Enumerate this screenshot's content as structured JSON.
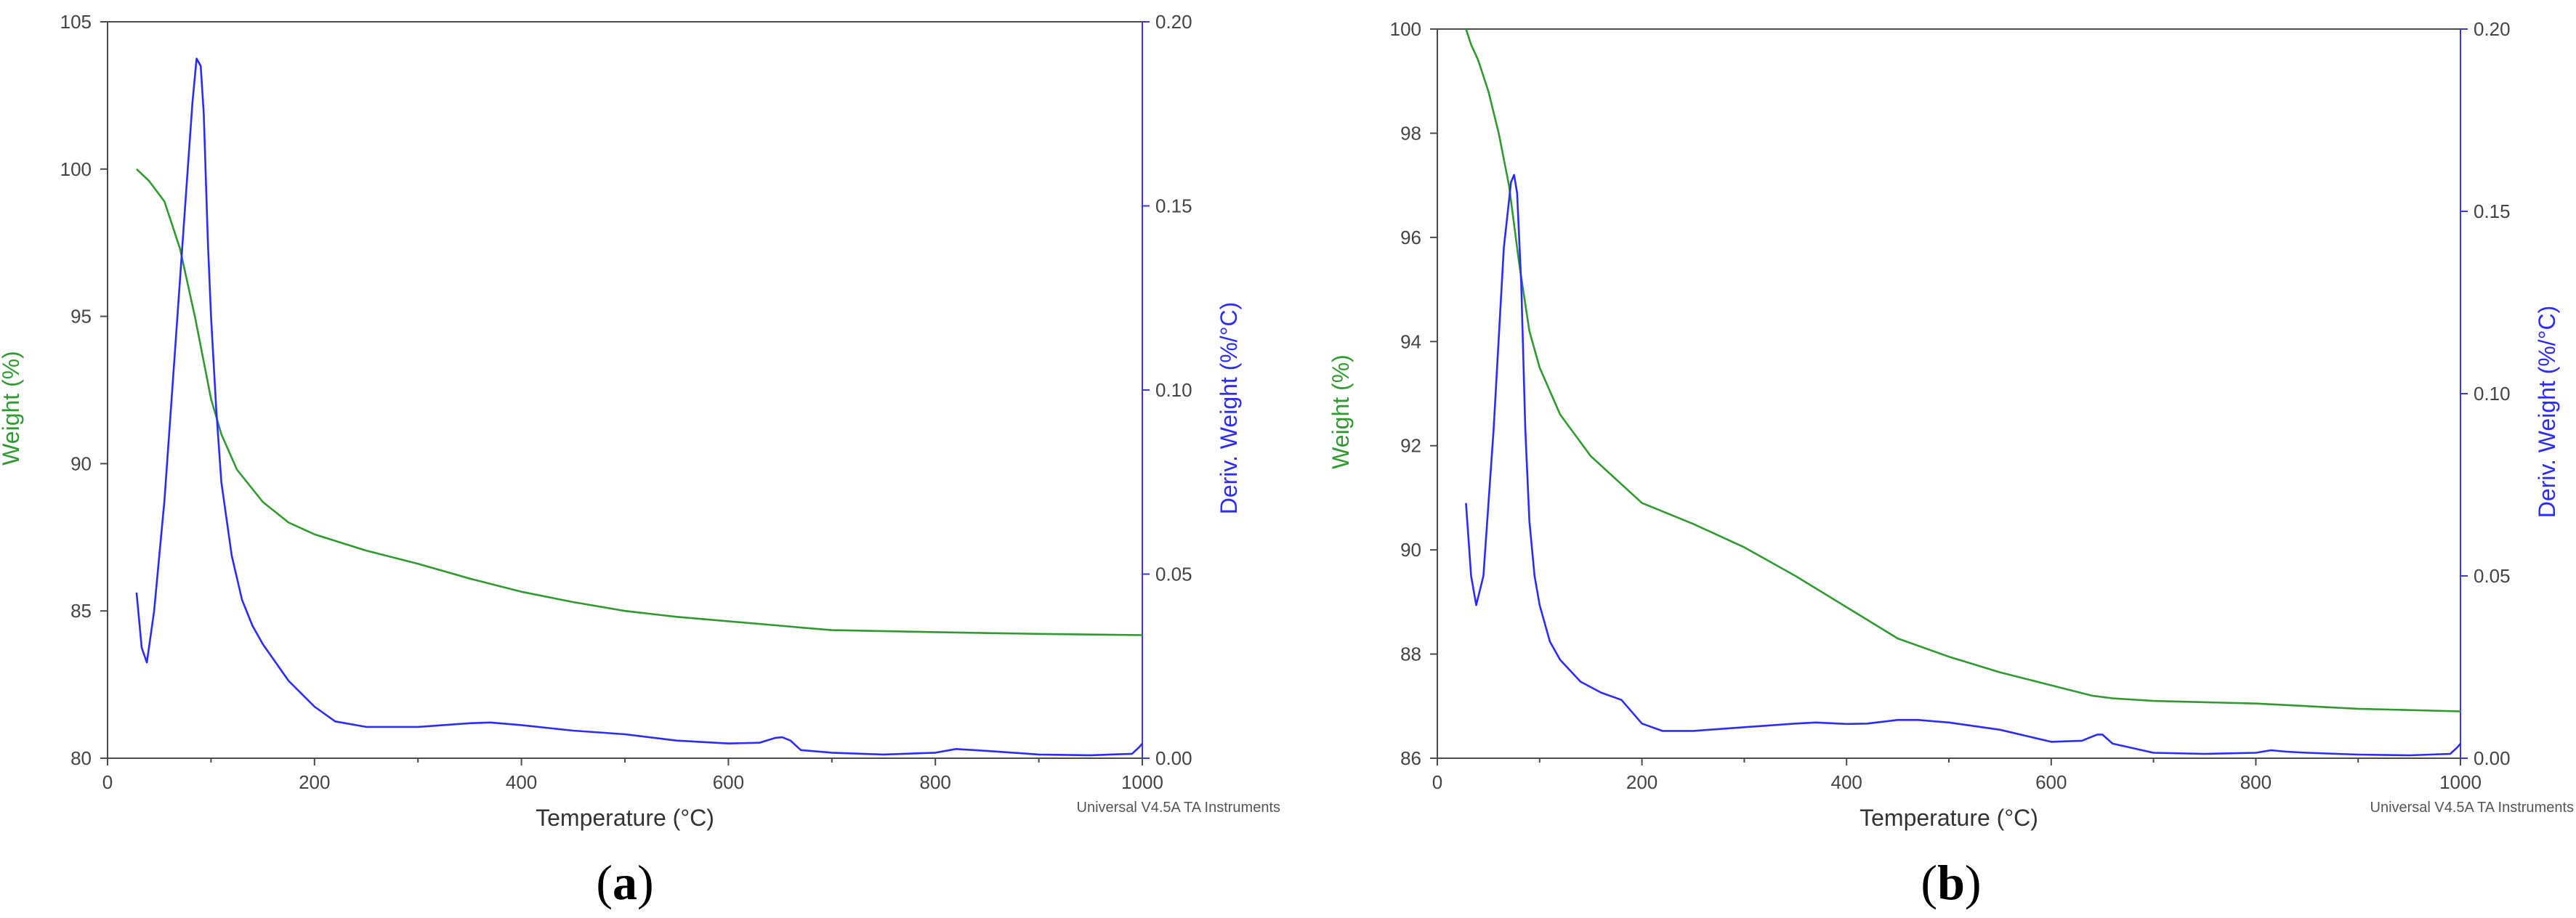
{
  "colors": {
    "weight": "#2f9a2f",
    "deriv": "#2b2bff",
    "axis": "#4a4a4a"
  },
  "footer": "Universal V4.5A TA Instruments",
  "chart_data": [
    {
      "type": "line",
      "panel_label": "(a)",
      "xlabel": "Temperature (°C)",
      "ylabel_left": "Weight (%)",
      "ylabel_right": "Deriv. Weight (%/°C)",
      "xlim": [
        0,
        1000
      ],
      "ylim_left": [
        80,
        105
      ],
      "ylim_right": [
        0,
        0.2
      ],
      "xticks": [
        0,
        200,
        400,
        600,
        800,
        1000
      ],
      "yticks_left": [
        80,
        85,
        90,
        95,
        100,
        105
      ],
      "yticks_right": [
        "0.00",
        "0.05",
        "0.10",
        "0.15",
        "0.20"
      ],
      "series": [
        {
          "name": "Weight (%)",
          "axis": "left",
          "x": [
            28,
            40,
            55,
            70,
            85,
            100,
            110,
            125,
            150,
            175,
            200,
            250,
            300,
            350,
            400,
            450,
            500,
            550,
            600,
            650,
            675,
            700,
            800,
            900,
            1000
          ],
          "y": [
            100,
            99.6,
            98.9,
            97.3,
            94.9,
            92.2,
            91,
            89.8,
            88.7,
            88,
            87.6,
            87.05,
            86.6,
            86.1,
            85.65,
            85.3,
            85.0,
            84.8,
            84.65,
            84.5,
            84.42,
            84.35,
            84.28,
            84.22,
            84.18
          ]
        },
        {
          "name": "Deriv. Weight (%/°C)",
          "axis": "right",
          "x": [
            28,
            33,
            38,
            45,
            55,
            65,
            75,
            82,
            86,
            90,
            93,
            97,
            100,
            105,
            110,
            120,
            130,
            140,
            150,
            175,
            200,
            220,
            250,
            300,
            350,
            370,
            400,
            450,
            500,
            550,
            600,
            630,
            645,
            652,
            660,
            670,
            700,
            750,
            800,
            820,
            850,
            900,
            950,
            990,
            997,
            1000
          ],
          "y": [
            0.045,
            0.03,
            0.026,
            0.04,
            0.07,
            0.11,
            0.15,
            0.178,
            0.19,
            0.188,
            0.175,
            0.14,
            0.12,
            0.095,
            0.075,
            0.055,
            0.043,
            0.036,
            0.031,
            0.021,
            0.014,
            0.01,
            0.0085,
            0.0085,
            0.0095,
            0.0097,
            0.009,
            0.0075,
            0.0065,
            0.0048,
            0.004,
            0.0042,
            0.0055,
            0.0057,
            0.0048,
            0.0022,
            0.0015,
            0.001,
            0.0015,
            0.0025,
            0.002,
            0.001,
            0.0008,
            0.0012,
            0.003,
            0.004
          ]
        }
      ]
    },
    {
      "type": "line",
      "panel_label": "(b)",
      "xlabel": "Temperature (°C)",
      "ylabel_left": "Weight (%)",
      "ylabel_right": "Deriv. Weight (%/°C)",
      "xlim": [
        0,
        1000
      ],
      "ylim_left": [
        86,
        100
      ],
      "ylim_right": [
        0,
        0.2
      ],
      "xticks": [
        0,
        200,
        400,
        600,
        800,
        1000
      ],
      "yticks_left": [
        86,
        88,
        90,
        92,
        94,
        96,
        98,
        100
      ],
      "yticks_right": [
        "0.00",
        "0.05",
        "0.10",
        "0.15",
        "0.20"
      ],
      "series": [
        {
          "name": "Weight (%)",
          "axis": "left",
          "x": [
            28,
            33,
            40,
            50,
            60,
            70,
            80,
            90,
            100,
            120,
            150,
            200,
            250,
            300,
            350,
            400,
            450,
            500,
            550,
            600,
            640,
            660,
            700,
            800,
            900,
            1000
          ],
          "y": [
            100,
            99.7,
            99.4,
            98.8,
            98.0,
            97.0,
            95.5,
            94.2,
            93.5,
            92.6,
            91.8,
            90.9,
            90.5,
            90.05,
            89.5,
            88.9,
            88.3,
            87.95,
            87.65,
            87.4,
            87.2,
            87.15,
            87.1,
            87.05,
            86.95,
            86.9
          ]
        },
        {
          "name": "Deriv. Weight (%/°C)",
          "axis": "right",
          "x": [
            28,
            33,
            38,
            45,
            55,
            65,
            72,
            75,
            78,
            82,
            86,
            90,
            95,
            100,
            110,
            120,
            140,
            160,
            180,
            200,
            220,
            250,
            300,
            350,
            370,
            400,
            420,
            450,
            470,
            500,
            550,
            600,
            630,
            645,
            650,
            660,
            700,
            750,
            800,
            815,
            830,
            850,
            900,
            950,
            990,
            997,
            1000
          ],
          "y": [
            0.07,
            0.05,
            0.042,
            0.05,
            0.09,
            0.14,
            0.158,
            0.16,
            0.155,
            0.13,
            0.09,
            0.065,
            0.05,
            0.042,
            0.032,
            0.027,
            0.021,
            0.018,
            0.016,
            0.0095,
            0.0075,
            0.0075,
            0.0085,
            0.0095,
            0.0098,
            0.0094,
            0.0095,
            0.0105,
            0.0105,
            0.0098,
            0.0078,
            0.0045,
            0.0048,
            0.0065,
            0.0065,
            0.004,
            0.0015,
            0.0012,
            0.0015,
            0.0022,
            0.0018,
            0.0015,
            0.001,
            0.0008,
            0.0012,
            0.003,
            0.004
          ]
        }
      ]
    }
  ]
}
